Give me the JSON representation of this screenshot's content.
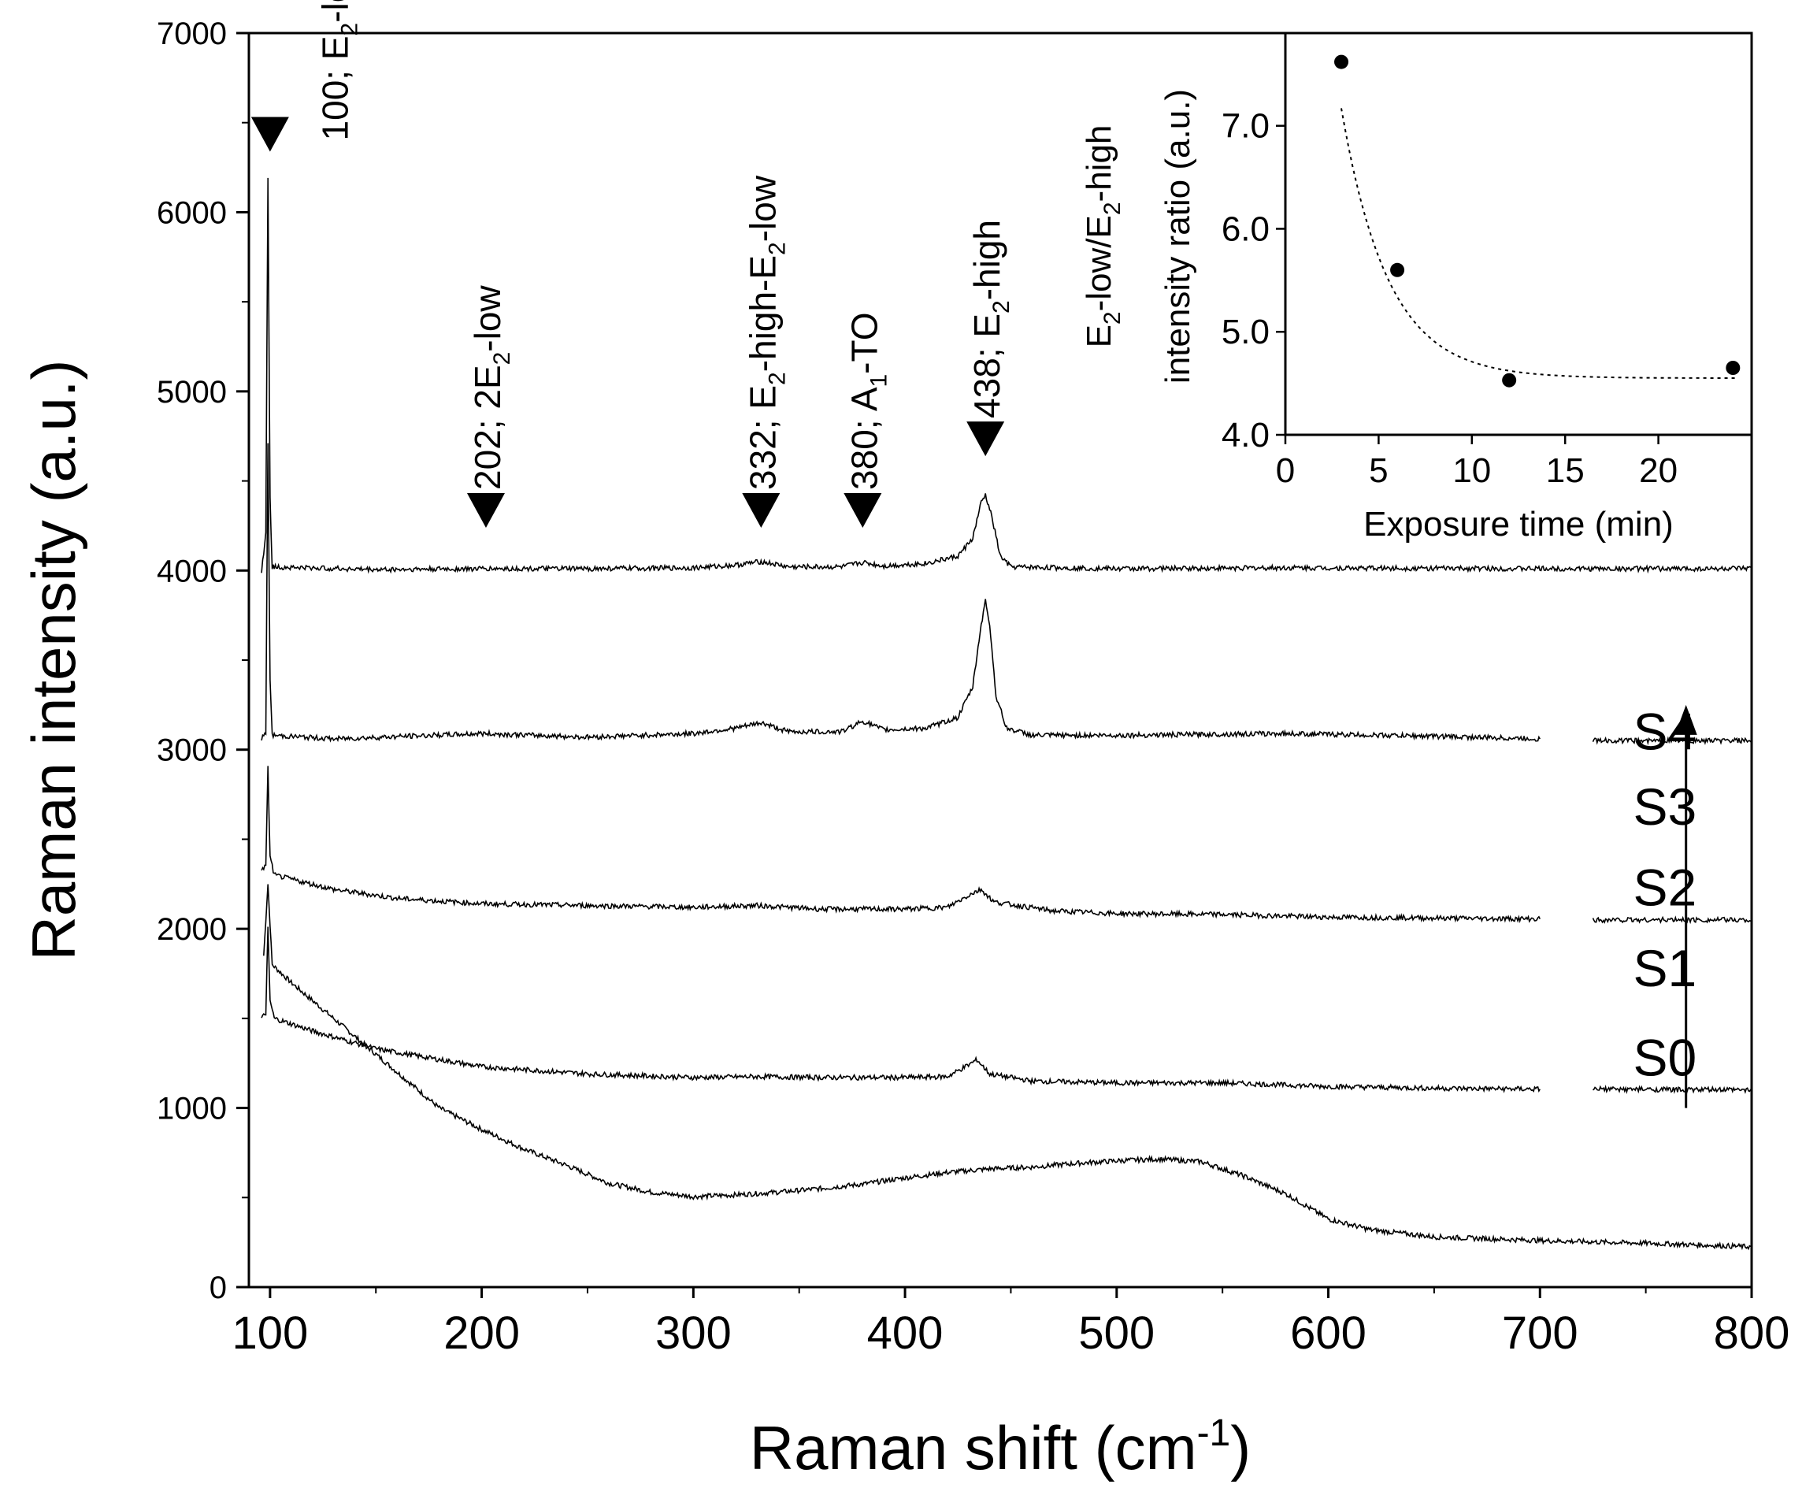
{
  "chart_data": [
    {
      "type": "line",
      "xlabel": "Raman shift (cm",
      "xlabel_sup": "-1",
      "xlabel_end": ")",
      "ylabel": "Raman intensity (a.u.)",
      "xlim": [
        90,
        800
      ],
      "ylim": [
        0,
        7000
      ],
      "xticks": [
        100,
        200,
        300,
        400,
        500,
        600,
        700,
        800
      ],
      "yticks": [
        0,
        1000,
        2000,
        3000,
        4000,
        5000,
        6000,
        7000
      ],
      "series": [
        {
          "name": "S0",
          "points": [
            [
              97,
              1850
            ],
            [
              99,
              2250
            ],
            [
              101,
              1800
            ],
            [
              110,
              1700
            ],
            [
              125,
              1550
            ],
            [
              140,
              1400
            ],
            [
              160,
              1200
            ],
            [
              180,
              1000
            ],
            [
              200,
              880
            ],
            [
              220,
              770
            ],
            [
              240,
              680
            ],
            [
              260,
              580
            ],
            [
              280,
              530
            ],
            [
              300,
              505
            ],
            [
              320,
              515
            ],
            [
              340,
              530
            ],
            [
              360,
              550
            ],
            [
              380,
              575
            ],
            [
              400,
              610
            ],
            [
              420,
              640
            ],
            [
              440,
              660
            ],
            [
              460,
              670
            ],
            [
              480,
              690
            ],
            [
              500,
              705
            ],
            [
              520,
              715
            ],
            [
              540,
              700
            ],
            [
              560,
              620
            ],
            [
              580,
              520
            ],
            [
              590,
              450
            ],
            [
              600,
              380
            ],
            [
              620,
              320
            ],
            [
              650,
              280
            ],
            [
              700,
              260
            ],
            [
              750,
              245
            ],
            [
              800,
              225
            ]
          ]
        },
        {
          "name": "S1",
          "points": [
            [
              96,
              1500
            ],
            [
              98,
              1530
            ],
            [
              99,
              2000
            ],
            [
              100,
              1600
            ],
            [
              102,
              1500
            ],
            [
              120,
              1430
            ],
            [
              150,
              1330
            ],
            [
              200,
              1230
            ],
            [
              250,
              1190
            ],
            [
              300,
              1170
            ],
            [
              330,
              1175
            ],
            [
              360,
              1170
            ],
            [
              400,
              1170
            ],
            [
              420,
              1175
            ],
            [
              430,
              1240
            ],
            [
              434,
              1270
            ],
            [
              440,
              1190
            ],
            [
              460,
              1150
            ],
            [
              500,
              1140
            ],
            [
              550,
              1140
            ],
            [
              600,
              1120
            ],
            [
              650,
              1110
            ],
            [
              700,
              1105
            ]
          ]
        },
        {
          "name": "S2",
          "points": [
            [
              96,
              2330
            ],
            [
              98,
              2350
            ],
            [
              99,
              2900
            ],
            [
              100,
              2400
            ],
            [
              102,
              2300
            ],
            [
              130,
              2220
            ],
            [
              160,
              2170
            ],
            [
              200,
              2140
            ],
            [
              250,
              2130
            ],
            [
              300,
              2120
            ],
            [
              330,
              2130
            ],
            [
              360,
              2110
            ],
            [
              400,
              2110
            ],
            [
              420,
              2120
            ],
            [
              432,
              2200
            ],
            [
              436,
              2220
            ],
            [
              442,
              2150
            ],
            [
              470,
              2100
            ],
            [
              500,
              2085
            ],
            [
              550,
              2080
            ],
            [
              600,
              2065
            ],
            [
              650,
              2060
            ],
            [
              700,
              2055
            ]
          ]
        },
        {
          "name": "S3",
          "points": [
            [
              96,
              3060
            ],
            [
              98,
              3100
            ],
            [
              99,
              4700
            ],
            [
              100,
              3400
            ],
            [
              101,
              3080
            ],
            [
              130,
              3060
            ],
            [
              200,
              3090
            ],
            [
              250,
              3070
            ],
            [
              300,
              3090
            ],
            [
              320,
              3120
            ],
            [
              332,
              3150
            ],
            [
              345,
              3100
            ],
            [
              370,
              3100
            ],
            [
              380,
              3160
            ],
            [
              390,
              3110
            ],
            [
              410,
              3120
            ],
            [
              425,
              3180
            ],
            [
              432,
              3350
            ],
            [
              436,
              3700
            ],
            [
              438,
              3830
            ],
            [
              440,
              3700
            ],
            [
              443,
              3300
            ],
            [
              448,
              3120
            ],
            [
              460,
              3080
            ],
            [
              500,
              3080
            ],
            [
              580,
              3090
            ],
            [
              650,
              3075
            ],
            [
              700,
              3060
            ]
          ]
        },
        {
          "name": "S4",
          "points": [
            [
              96,
              4000
            ],
            [
              98,
              4200
            ],
            [
              99,
              6200
            ],
            [
              100,
              4400
            ],
            [
              101,
              4020
            ],
            [
              150,
              4005
            ],
            [
              202,
              4010
            ],
            [
              250,
              4010
            ],
            [
              300,
              4015
            ],
            [
              320,
              4030
            ],
            [
              332,
              4050
            ],
            [
              345,
              4020
            ],
            [
              370,
              4020
            ],
            [
              380,
              4045
            ],
            [
              390,
              4025
            ],
            [
              410,
              4040
            ],
            [
              425,
              4080
            ],
            [
              432,
              4180
            ],
            [
              436,
              4380
            ],
            [
              438,
              4420
            ],
            [
              441,
              4300
            ],
            [
              445,
              4080
            ],
            [
              450,
              4020
            ],
            [
              500,
              4010
            ],
            [
              580,
              4015
            ],
            [
              700,
              4010
            ],
            [
              800,
              4010
            ]
          ]
        },
        {
          "name": "S0 end",
          "points": [
            [
              725,
              1105
            ],
            [
              800,
              1100
            ]
          ]
        },
        {
          "name": "S2 end",
          "points": [
            [
              725,
              2050
            ],
            [
              800,
              2050
            ]
          ]
        },
        {
          "name": "S4 end",
          "points": [
            [
              725,
              3050
            ],
            [
              800,
              3050
            ]
          ]
        }
      ],
      "annotations": {
        "peaks": [
          {
            "x": 100,
            "y": 6400,
            "base": "100; E",
            "sub": "2",
            "rest": "-low",
            "label_x": 130,
            "label_y": 6400
          },
          {
            "x": 202,
            "y": 4300,
            "base": "202; 2E",
            "sub": "2",
            "rest": "-low",
            "label_x": 202,
            "label_y": 4450
          },
          {
            "x": 332,
            "y": 4300,
            "base": "332; E",
            "sub": "2",
            "rest": "-high-E",
            "sub2": "2",
            "rest2": "-low",
            "label_x": 332,
            "label_y": 4450
          },
          {
            "x": 380,
            "y": 4300,
            "base": "380; A",
            "sub": "1",
            "rest": "-TO",
            "label_x": 380,
            "label_y": 4450
          },
          {
            "x": 438,
            "y": 4700,
            "base": "438; E",
            "sub": "2",
            "rest": "-high",
            "label_x": 438,
            "label_y": 4850
          }
        ],
        "sample_labels": [
          "S4",
          "S3",
          "S2",
          "S1",
          "S0"
        ],
        "sample_label_positions": [
          {
            "x": 759,
            "y": 3000
          },
          {
            "x": 759,
            "y": 2580
          },
          {
            "x": 759,
            "y": 2130
          },
          {
            "x": 759,
            "y": 1680
          },
          {
            "x": 759,
            "y": 1180
          }
        ],
        "arrow": {
          "x": 769,
          "x_from": 769,
          "y_from": 1000,
          "y_to": 3250
        }
      }
    },
    {
      "type": "scatter",
      "xlabel": "Exposure time (min)",
      "ylabel_line1": "E",
      "ylabel_line1_sub": "2",
      "ylabel_line1_mid": "-low/E",
      "ylabel_line1_sub2": "2",
      "ylabel_line1_end": "-high",
      "ylabel_line2": "intensity ratio (a.u.)",
      "xlim": [
        0,
        25
      ],
      "ylim": [
        4.0,
        7.9
      ],
      "xticks": [
        0,
        5,
        10,
        15,
        20
      ],
      "yticks": [
        "4.0",
        "5.0",
        "6.0",
        "7.0"
      ],
      "points": [
        {
          "x": 3,
          "y": 7.62
        },
        {
          "x": 6,
          "y": 5.6
        },
        {
          "x": 12,
          "y": 4.53
        },
        {
          "x": 24,
          "y": 4.65
        }
      ],
      "fit": {
        "type": "exponential decay",
        "a": 4.55,
        "b": 8.7,
        "k": 0.4
      }
    }
  ]
}
